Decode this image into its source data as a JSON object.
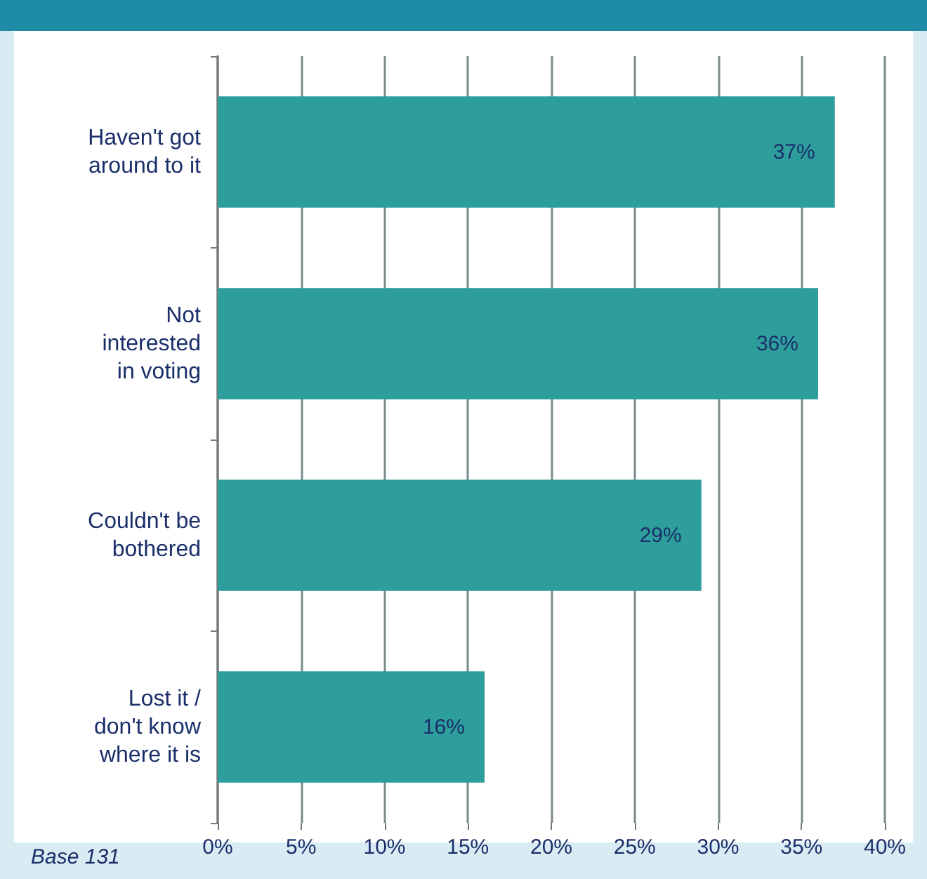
{
  "chart_data": {
    "type": "bar",
    "orientation": "horizontal",
    "categories": [
      "Haven't got\naround to it",
      "Not\ninterested\nin voting",
      "Couldn't be\nbothered",
      "Lost it /\ndon't know\nwhere it is"
    ],
    "values": [
      37,
      36,
      29,
      16
    ],
    "color": "#2e9e9c",
    "value_labels": [
      "37%",
      "36%",
      "29%",
      "16%"
    ],
    "xlim": [
      0,
      40
    ],
    "xticks": [
      {
        "value": 0,
        "label": "0%"
      },
      {
        "value": 5,
        "label": "5%"
      },
      {
        "value": 10,
        "label": "10%"
      },
      {
        "value": 15,
        "label": "15%"
      },
      {
        "value": 20,
        "label": "20%"
      },
      {
        "value": 25,
        "label": "25%"
      },
      {
        "value": 30,
        "label": "30%"
      },
      {
        "value": 35,
        "label": "35%"
      },
      {
        "value": 40,
        "label": "40%"
      }
    ],
    "grid": "x",
    "annotations": [
      "Base 131"
    ]
  }
}
